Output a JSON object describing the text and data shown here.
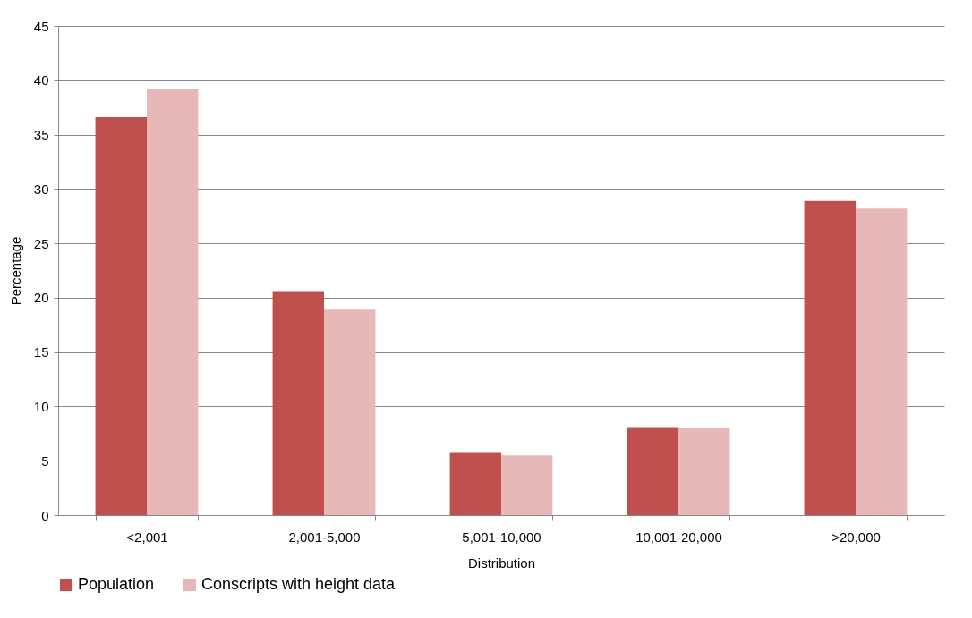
{
  "chart_data": {
    "type": "bar",
    "xlabel": "Distribution",
    "ylabel": "Percentage",
    "categories": [
      "<2,001",
      "2,001-5,000",
      "5,001-10,000",
      "10,001-20,000",
      ">20,000"
    ],
    "series": [
      {
        "name": "Population",
        "color": "#c0504d",
        "values": [
          36.6,
          20.6,
          5.8,
          8.1,
          28.9
        ]
      },
      {
        "name": "Conscripts with height data",
        "color": "#e6b9b8",
        "values": [
          39.2,
          18.9,
          5.5,
          8.0,
          28.2
        ]
      }
    ],
    "ylim": [
      0,
      45
    ],
    "yticks": [
      0,
      5,
      10,
      15,
      20,
      25,
      30,
      35,
      40,
      45
    ],
    "grid": "y",
    "legend": "bottom"
  }
}
